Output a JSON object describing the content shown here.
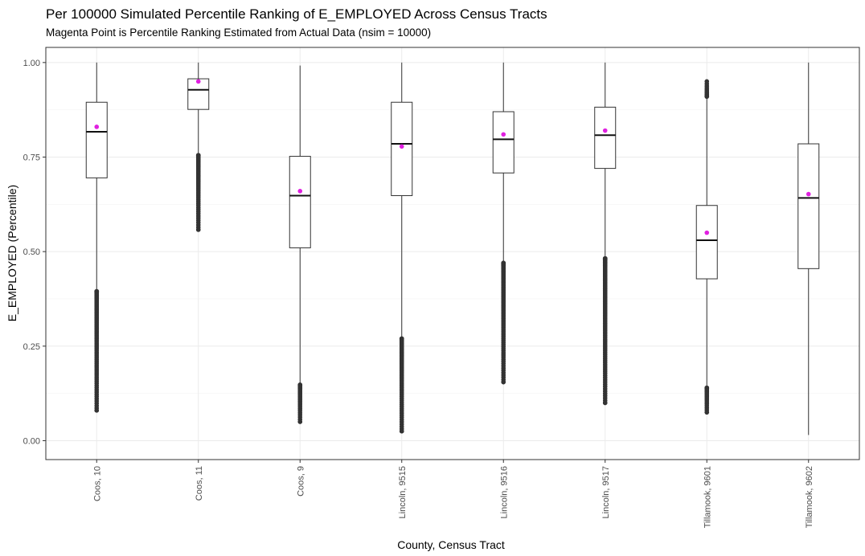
{
  "chart_data": {
    "type": "boxplot",
    "title": "Per 100000 Simulated Percentile Ranking of E_EMPLOYED Across Census Tracts",
    "subtitle": "Magenta Point is Percentile Ranking Estimated from Actual Data (nsim = 10000)",
    "xlabel": "County, Census Tract",
    "ylabel": "E_EMPLOYED (Percentile)",
    "ylim": [
      -0.05,
      1.04
    ],
    "yticks": [
      0.0,
      0.25,
      0.5,
      0.75,
      1.0
    ],
    "ytick_labels": [
      "0.00",
      "0.25",
      "0.50",
      "0.75",
      "1.00"
    ],
    "grid": true,
    "point_color": "#e020e0",
    "categories": [
      "Coos, 10",
      "Coos, 11",
      "Coos, 9",
      "Lincoln, 9515",
      "Lincoln, 9516",
      "Lincoln, 9517",
      "Tillamook, 9601",
      "Tillamook, 9602"
    ],
    "boxes": [
      {
        "q1": 0.695,
        "median": 0.817,
        "q3": 0.895,
        "whisker_low": 0.395,
        "whisker_high": 1.0,
        "outlier_low_range": [
          0.08,
          0.395
        ],
        "outlier_high_range": null,
        "actual": 0.83
      },
      {
        "q1": 0.876,
        "median": 0.928,
        "q3": 0.957,
        "whisker_low": 0.755,
        "whisker_high": 1.0,
        "outlier_low_range": [
          0.558,
          0.755
        ],
        "outlier_high_range": null,
        "actual": 0.95
      },
      {
        "q1": 0.51,
        "median": 0.648,
        "q3": 0.752,
        "whisker_low": 0.148,
        "whisker_high": 0.992,
        "outlier_low_range": [
          0.05,
          0.148
        ],
        "outlier_high_range": null,
        "actual": 0.66
      },
      {
        "q1": 0.648,
        "median": 0.785,
        "q3": 0.895,
        "whisker_low": 0.27,
        "whisker_high": 1.0,
        "outlier_low_range": [
          0.025,
          0.27
        ],
        "outlier_high_range": null,
        "actual": 0.778
      },
      {
        "q1": 0.708,
        "median": 0.797,
        "q3": 0.87,
        "whisker_low": 0.47,
        "whisker_high": 1.0,
        "outlier_low_range": [
          0.155,
          0.47
        ],
        "outlier_high_range": null,
        "actual": 0.81
      },
      {
        "q1": 0.72,
        "median": 0.808,
        "q3": 0.882,
        "whisker_low": 0.482,
        "whisker_high": 1.0,
        "outlier_low_range": [
          0.1,
          0.482
        ],
        "outlier_high_range": null,
        "actual": 0.82
      },
      {
        "q1": 0.428,
        "median": 0.53,
        "q3": 0.622,
        "whisker_low": 0.14,
        "whisker_high": 0.91,
        "outlier_low_range": [
          0.075,
          0.14
        ],
        "outlier_high_range": [
          0.91,
          0.95
        ],
        "actual": 0.55
      },
      {
        "q1": 0.455,
        "median": 0.642,
        "q3": 0.785,
        "whisker_low": 0.015,
        "whisker_high": 1.0,
        "outlier_low_range": null,
        "outlier_high_range": null,
        "actual": 0.652
      }
    ]
  }
}
